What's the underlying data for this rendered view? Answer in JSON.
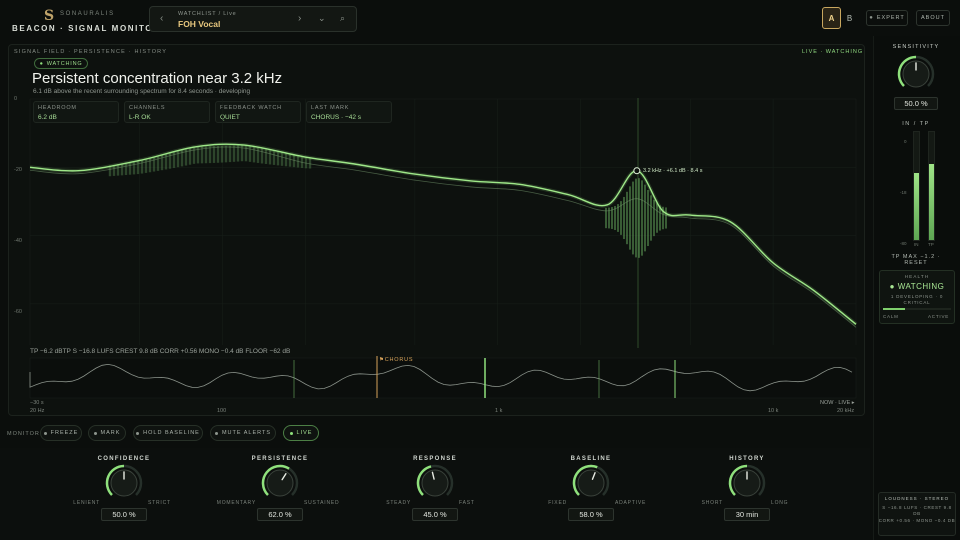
{
  "header": {
    "logo_glyph": "S",
    "brand": "SONAURALIS",
    "product_title": "BEACON · SIGNAL MONITOR",
    "watchlist_label": "WATCHLIST / Live",
    "watchlist_value": "FOH Vocal",
    "ab_a": "A",
    "ab_b": "B",
    "expert": "EXPERT",
    "about": "ABOUT",
    "icons": {
      "prev": "chevron-left-icon",
      "next": "chevron-right-icon",
      "dropdown": "chevron-down-icon",
      "search": "search-icon"
    }
  },
  "main": {
    "section_label": "SIGNAL FIELD · PERSISTENCE · HISTORY",
    "live_status": "LIVE · WATCHING",
    "state_pill": "WATCHING",
    "headline": "Persistent concentration near 3.2 kHz",
    "subline": "6.1 dB above the recent surrounding spectrum for 8.4 seconds · developing",
    "cards": [
      {
        "key": "HEADROOM",
        "value": "6.2 dB"
      },
      {
        "key": "CHANNELS",
        "value": "L-R OK"
      },
      {
        "key": "FEEDBACK WATCH",
        "value": "QUIET"
      },
      {
        "key": "LAST MARK",
        "value": "CHORUS · −42 s"
      }
    ],
    "y_labels": [
      "0",
      "-20",
      "-40",
      "-60"
    ],
    "peak_label": "3.2 kHz · +6.1 dB · 8.4 s",
    "stats_line": "TP −6.2 dBTP   S −16.8 LUFS   CREST 9.8 dB   CORR +0.56   MONO −0.4 dB   FLOOR −62 dB",
    "chorus_label": "CHORUS",
    "hist_time_start": "−30 s",
    "hist_time_end": "NOW · LIVE ▸",
    "x_labels": [
      "20 Hz",
      "100",
      "1 k",
      "10 k",
      "20 kHz"
    ]
  },
  "chart_data": {
    "type": "line",
    "x": [
      20,
      30,
      50,
      80,
      120,
      200,
      300,
      500,
      800,
      1200,
      1800,
      2500,
      3200,
      4000,
      5000,
      7000,
      10000,
      14000,
      20000
    ],
    "series": [
      {
        "values": [
          -20,
          -21,
          -18,
          -14,
          -13.5,
          -17,
          -19,
          -22,
          -24,
          -25,
          -28,
          -31,
          -21,
          -33,
          -34,
          -36,
          -48,
          -56,
          -66
        ]
      }
    ],
    "ylim": [
      -70,
      0
    ],
    "xscale": "log",
    "colors": {
      "line": "#8fe07c",
      "accent": "#c9a75f"
    }
  },
  "monitor": {
    "label": "MONITOR",
    "buttons": [
      "FREEZE",
      "MARK",
      "HOLD BASELINE",
      "MUTE ALERTS",
      "LIVE"
    ]
  },
  "knobs": [
    {
      "label": "CONFIDENCE",
      "min": "LENIENT",
      "max": "STRICT",
      "value": "50.0 %",
      "level": 0.5
    },
    {
      "label": "PERSISTENCE",
      "min": "MOMENTARY",
      "max": "SUSTAINED",
      "value": "62.0 %",
      "level": 0.62
    },
    {
      "label": "RESPONSE",
      "min": "STEADY",
      "max": "FAST",
      "value": "45.0 %",
      "level": 0.45
    },
    {
      "label": "BASELINE",
      "min": "FIXED",
      "max": "ADAPTIVE",
      "value": "58.0 %",
      "level": 0.58
    },
    {
      "label": "HISTORY",
      "min": "SHORT",
      "max": "LONG",
      "value": "30 min",
      "level": 0.5
    }
  ],
  "side": {
    "sensitivity_label": "SENSITIVITY",
    "sensitivity_value": "50.0 %",
    "sensitivity_level": 0.5,
    "in_tp": "IN / TP",
    "meter_ticks": [
      "0",
      "-18",
      "-80"
    ],
    "meter_in_label": "IN",
    "meter_tp_label": "TP",
    "meter_in_level": 0.62,
    "meter_tp_level": 0.7,
    "tp_max": "TP MAX −1.2 · RESET",
    "health_label": "HEALTH",
    "health_state": "● WATCHING",
    "health_detail": "1 DEVELOPING · 0 CRITICAL",
    "health_level": 0.32,
    "calm": "CALM",
    "active": "ACTIVE",
    "loudness_title": "LOUDNESS · STEREO",
    "loudness_line1": "S −16.8 LUFS · CREST 9.8 DB",
    "loudness_line2": "CORR +0.56 · MONO −0.4 DB"
  }
}
